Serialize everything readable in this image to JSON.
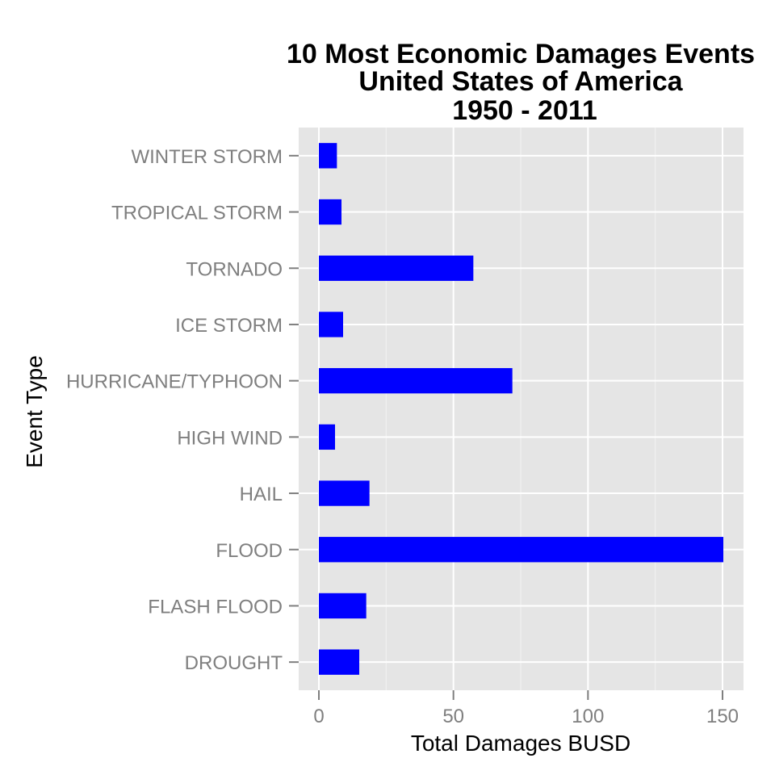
{
  "chart_data": {
    "type": "bar",
    "orientation": "horizontal",
    "title_lines": [
      "10 Most Economic Damages Events",
      "United States of America",
      "1950 - 2011"
    ],
    "xlabel": "Total Damages BUSD",
    "ylabel": "Event Type",
    "categories": [
      "DROUGHT",
      "FLASH FLOOD",
      "FLOOD",
      "HAIL",
      "HIGH WIND",
      "HURRICANE/TYPHOON",
      "ICE STORM",
      "TORNADO",
      "TROPICAL STORM",
      "WINTER STORM"
    ],
    "values": [
      15.0,
      17.6,
      150.3,
      18.8,
      6.0,
      71.9,
      9.0,
      57.4,
      8.4,
      6.7
    ],
    "xticks": [
      0,
      50,
      100,
      150
    ],
    "xlim": [
      -7.5,
      157.8
    ],
    "grid": true,
    "colors": {
      "bar": "#0000ff",
      "panel": "#e5e5e5",
      "grid": "#ffffff",
      "minor_grid": "#f2f2f2",
      "tick": "#7f7f7f"
    }
  }
}
